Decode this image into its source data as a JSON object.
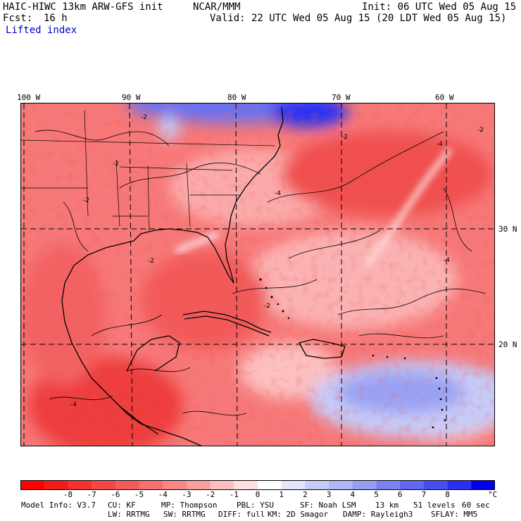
{
  "header": {
    "title": "HAIC-HIWC 13km ARW-GFS init",
    "org": "NCAR/MMM",
    "init": "Init: 06 UTC Wed 05 Aug 15",
    "fcst_label": "Fcst:",
    "fcst_value": "16 h",
    "valid": "Valid: 22 UTC Wed 05 Aug 15 (20 LDT Wed 05 Aug 15)",
    "field": "Lifted index"
  },
  "map": {
    "lon_labels": [
      "100 W",
      "90 W",
      "80 W",
      "70 W",
      "60 W"
    ],
    "lat_labels": [
      "30 N",
      "20 N"
    ],
    "colors": {
      "pos_strong": "#0000ee",
      "pos_mid": "#6a78f0",
      "pos_light": "#c8cdf8",
      "neutral": "#ffffff",
      "neg_light": "#fcc4c4",
      "neg_mid": "#f66a6a",
      "neg_strong": "#e8242c"
    }
  },
  "colorbar": {
    "colors": [
      "#ff0000",
      "#f51a1a",
      "#f53232",
      "#f54646",
      "#f55a5a",
      "#f67070",
      "#f88686",
      "#fa9e9e",
      "#fcc0c0",
      "#ffe0e0",
      "#ffffff",
      "#e4e6fc",
      "#c8ccf8",
      "#b0b6f6",
      "#949cf4",
      "#7a82f2",
      "#6068f0",
      "#464ef0",
      "#2a30f2",
      "#0000ee"
    ],
    "labels": [
      "-8",
      "-7",
      "-6",
      "-5",
      "-4",
      "-3",
      "-2",
      "-1",
      "0",
      "1",
      "2",
      "3",
      "4",
      "5",
      "6",
      "7",
      "8"
    ],
    "unit": "°C"
  },
  "footer": {
    "line1": [
      "Model Info: V3.7",
      "CU: KF",
      "MP: Thompson",
      "PBL: YSU",
      "SF: Noah LSM",
      "13 km",
      "51 levels",
      "60 sec"
    ],
    "line2": [
      "LW: RRTMG",
      "SW: RRTMG",
      "DIFF: full",
      "KM: 2D Smagor",
      "DAMP: Rayleigh3",
      "SFLAY: MM5"
    ]
  }
}
